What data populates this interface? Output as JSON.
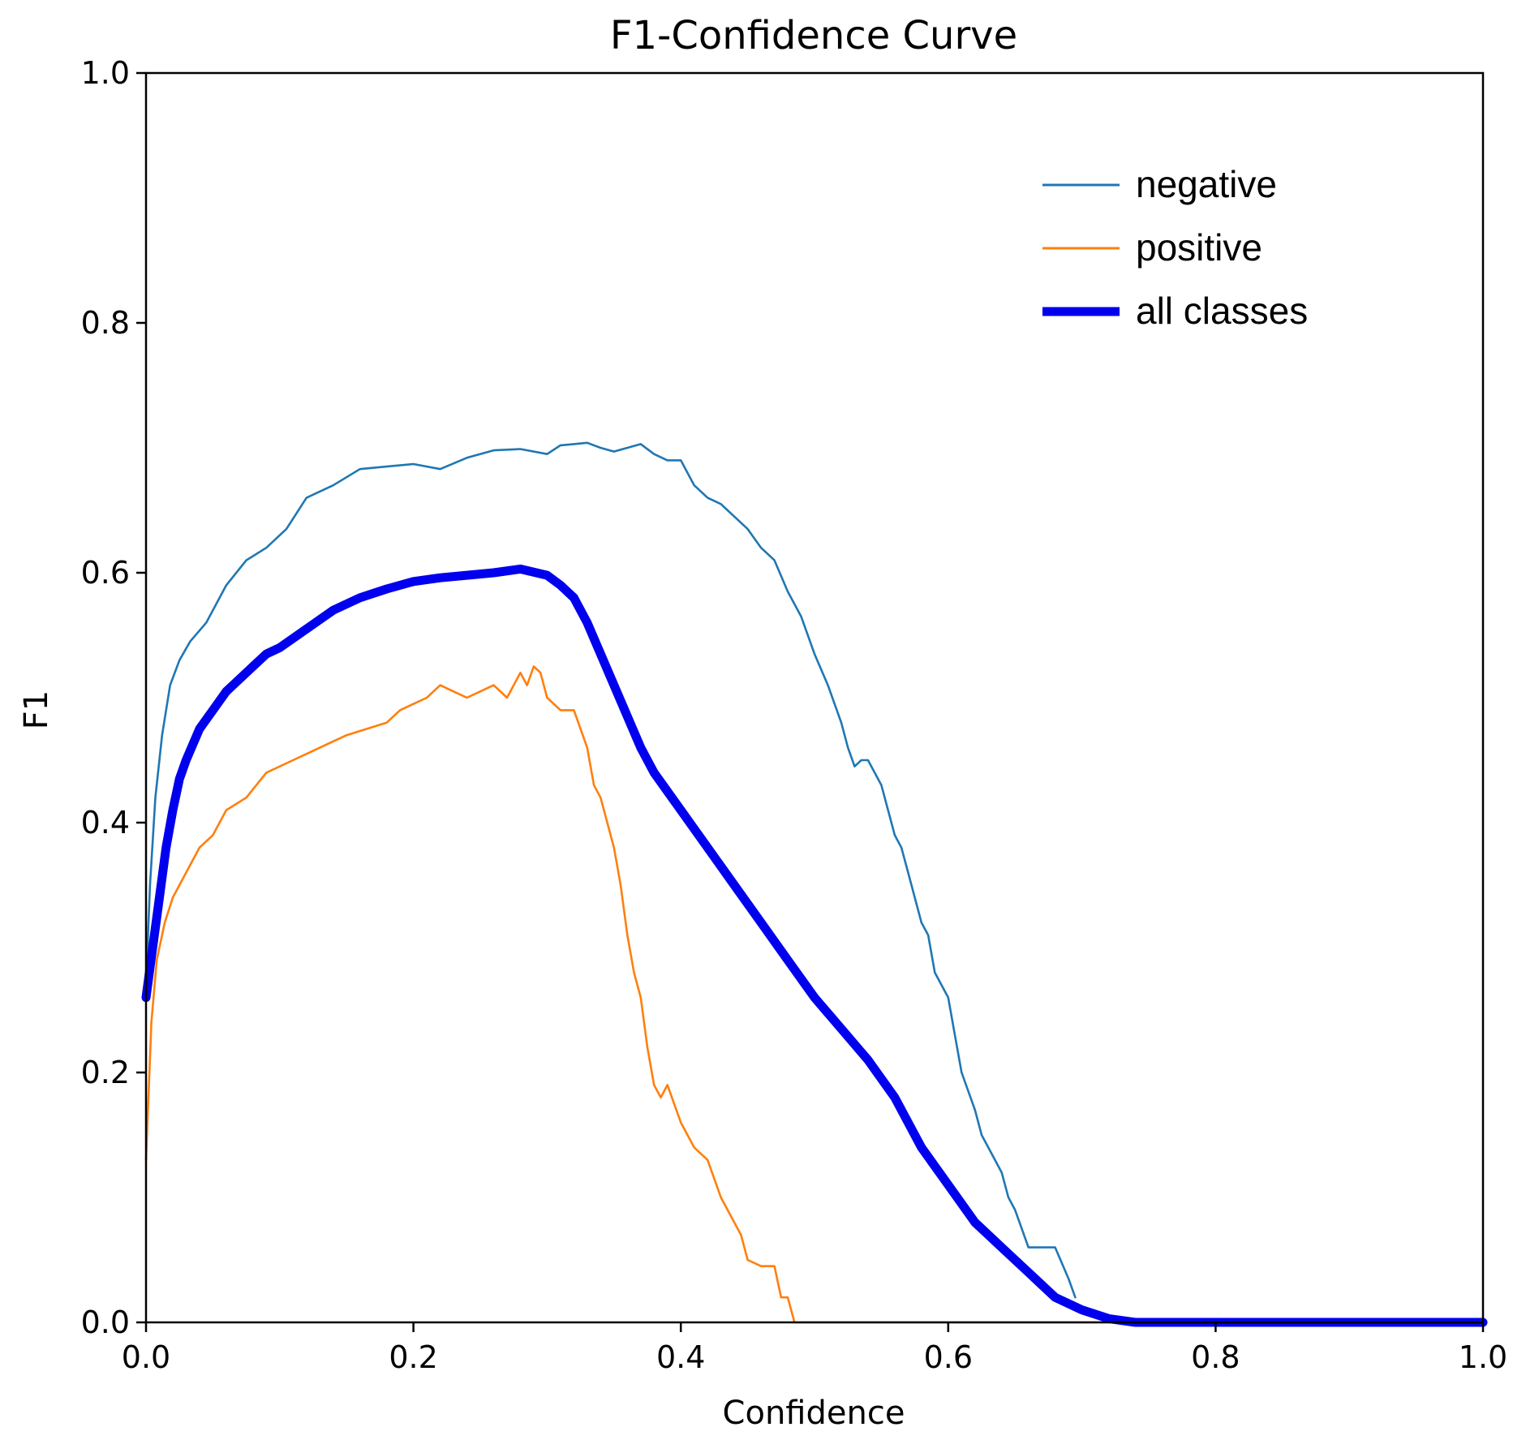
{
  "chart_data": {
    "type": "line",
    "title": "F1-Confidence Curve",
    "xlabel": "Confidence",
    "ylabel": "F1",
    "xlim": [
      0,
      1
    ],
    "ylim": [
      0,
      1
    ],
    "xticks": [
      0.0,
      0.2,
      0.4,
      0.6,
      0.8,
      1.0
    ],
    "xtick_labels": [
      "0.0",
      "0.2",
      "0.4",
      "0.6",
      "0.8",
      "1.0"
    ],
    "yticks": [
      0.0,
      0.2,
      0.4,
      0.6,
      0.8,
      1.0
    ],
    "ytick_labels": [
      "0.0",
      "0.2",
      "0.4",
      "0.6",
      "0.8",
      "1.0"
    ],
    "grid": false,
    "legend_position": "top-right",
    "series": [
      {
        "name": "negative",
        "color": "#1f77b4",
        "line_style": "thin",
        "x": [
          0.0,
          0.003,
          0.007,
          0.012,
          0.018,
          0.025,
          0.033,
          0.045,
          0.06,
          0.075,
          0.09,
          0.105,
          0.12,
          0.14,
          0.16,
          0.18,
          0.2,
          0.22,
          0.24,
          0.26,
          0.28,
          0.3,
          0.31,
          0.32,
          0.33,
          0.34,
          0.35,
          0.36,
          0.37,
          0.38,
          0.39,
          0.4,
          0.41,
          0.42,
          0.43,
          0.44,
          0.45,
          0.46,
          0.47,
          0.48,
          0.49,
          0.5,
          0.51,
          0.52,
          0.525,
          0.53,
          0.535,
          0.54,
          0.55,
          0.56,
          0.565,
          0.57,
          0.58,
          0.585,
          0.59,
          0.6,
          0.605,
          0.61,
          0.62,
          0.625,
          0.63,
          0.64,
          0.645,
          0.65,
          0.66,
          0.67,
          0.68,
          0.69,
          0.695
        ],
        "y": [
          0.27,
          0.35,
          0.42,
          0.47,
          0.51,
          0.53,
          0.545,
          0.56,
          0.59,
          0.61,
          0.62,
          0.635,
          0.66,
          0.67,
          0.683,
          0.685,
          0.687,
          0.683,
          0.692,
          0.698,
          0.699,
          0.695,
          0.702,
          0.703,
          0.704,
          0.7,
          0.697,
          0.7,
          0.703,
          0.695,
          0.69,
          0.69,
          0.67,
          0.66,
          0.655,
          0.645,
          0.635,
          0.62,
          0.61,
          0.585,
          0.565,
          0.535,
          0.51,
          0.48,
          0.46,
          0.445,
          0.45,
          0.45,
          0.43,
          0.39,
          0.38,
          0.36,
          0.32,
          0.31,
          0.28,
          0.26,
          0.23,
          0.2,
          0.17,
          0.15,
          0.14,
          0.12,
          0.1,
          0.09,
          0.06,
          0.06,
          0.06,
          0.035,
          0.02
        ]
      },
      {
        "name": "positive",
        "color": "#ff7f0e",
        "line_style": "thin",
        "x": [
          0.0,
          0.004,
          0.008,
          0.014,
          0.02,
          0.03,
          0.04,
          0.05,
          0.06,
          0.075,
          0.09,
          0.11,
          0.13,
          0.15,
          0.165,
          0.18,
          0.19,
          0.2,
          0.21,
          0.22,
          0.23,
          0.24,
          0.25,
          0.26,
          0.27,
          0.28,
          0.285,
          0.29,
          0.295,
          0.3,
          0.31,
          0.32,
          0.33,
          0.335,
          0.34,
          0.35,
          0.355,
          0.36,
          0.365,
          0.37,
          0.375,
          0.38,
          0.385,
          0.39,
          0.4,
          0.41,
          0.42,
          0.43,
          0.44,
          0.445,
          0.45,
          0.46,
          0.47,
          0.475,
          0.48,
          0.485,
          0.49,
          0.55,
          0.6,
          0.7,
          0.8,
          0.9,
          1.0
        ],
        "y": [
          0.13,
          0.24,
          0.29,
          0.32,
          0.34,
          0.36,
          0.38,
          0.39,
          0.41,
          0.42,
          0.44,
          0.45,
          0.46,
          0.47,
          0.475,
          0.48,
          0.49,
          0.495,
          0.5,
          0.51,
          0.505,
          0.5,
          0.505,
          0.51,
          0.5,
          0.52,
          0.51,
          0.525,
          0.52,
          0.5,
          0.49,
          0.49,
          0.46,
          0.43,
          0.42,
          0.38,
          0.35,
          0.31,
          0.28,
          0.26,
          0.22,
          0.19,
          0.18,
          0.19,
          0.16,
          0.14,
          0.13,
          0.1,
          0.08,
          0.07,
          0.05,
          0.045,
          0.045,
          0.02,
          0.02,
          0.0,
          0.0,
          0.0,
          0.0,
          0.0,
          0.0,
          0.0,
          0.0
        ]
      },
      {
        "name": "all classes",
        "color": "#0000ee",
        "line_style": "thick",
        "x": [
          0.0,
          0.005,
          0.01,
          0.015,
          0.02,
          0.025,
          0.03,
          0.04,
          0.05,
          0.06,
          0.07,
          0.08,
          0.09,
          0.1,
          0.12,
          0.14,
          0.16,
          0.18,
          0.2,
          0.22,
          0.24,
          0.26,
          0.28,
          0.3,
          0.31,
          0.32,
          0.33,
          0.34,
          0.35,
          0.36,
          0.37,
          0.38,
          0.39,
          0.4,
          0.42,
          0.44,
          0.46,
          0.48,
          0.5,
          0.52,
          0.54,
          0.56,
          0.58,
          0.6,
          0.62,
          0.64,
          0.66,
          0.68,
          0.7,
          0.72,
          0.74,
          0.76,
          0.8,
          0.9,
          1.0
        ],
        "y": [
          0.26,
          0.3,
          0.34,
          0.38,
          0.41,
          0.435,
          0.45,
          0.475,
          0.49,
          0.505,
          0.515,
          0.525,
          0.535,
          0.54,
          0.555,
          0.57,
          0.58,
          0.587,
          0.593,
          0.596,
          0.598,
          0.6,
          0.603,
          0.598,
          0.59,
          0.58,
          0.56,
          0.535,
          0.51,
          0.485,
          0.46,
          0.44,
          0.425,
          0.41,
          0.38,
          0.35,
          0.32,
          0.29,
          0.26,
          0.235,
          0.21,
          0.18,
          0.14,
          0.11,
          0.08,
          0.06,
          0.04,
          0.02,
          0.01,
          0.003,
          0.0,
          0.0,
          0.0,
          0.0,
          0.0
        ]
      }
    ]
  }
}
